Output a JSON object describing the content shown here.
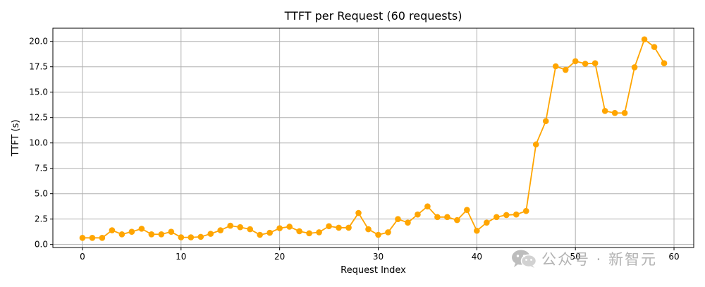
{
  "chart_data": {
    "type": "line",
    "title": "TTFT per Request (60 requests)",
    "xlabel": "Request Index",
    "ylabel": "TTFT (s)",
    "xlim": [
      -3,
      62
    ],
    "ylim": [
      -0.3,
      21.3
    ],
    "x_ticks": [
      0,
      10,
      20,
      30,
      40,
      50,
      60
    ],
    "y_ticks": [
      0.0,
      2.5,
      5.0,
      7.5,
      10.0,
      12.5,
      15.0,
      17.5,
      20.0
    ],
    "x_tick_labels": [
      "0",
      "10",
      "20",
      "30",
      "40",
      "50",
      "60"
    ],
    "y_tick_labels": [
      "0.0",
      "2.5",
      "5.0",
      "7.5",
      "10.0",
      "12.5",
      "15.0",
      "17.5",
      "20.0"
    ],
    "grid": true,
    "color": "#ffa500",
    "marker": "circle",
    "x": [
      0,
      1,
      2,
      3,
      4,
      5,
      6,
      7,
      8,
      9,
      10,
      11,
      12,
      13,
      14,
      15,
      16,
      17,
      18,
      19,
      20,
      21,
      22,
      23,
      24,
      25,
      26,
      27,
      28,
      29,
      30,
      31,
      32,
      33,
      34,
      35,
      36,
      37,
      38,
      39,
      40,
      41,
      42,
      43,
      44,
      45,
      46,
      47,
      48,
      49,
      50,
      51,
      52,
      53,
      54,
      55,
      56,
      57,
      58,
      59
    ],
    "y": [
      0.65,
      0.65,
      0.65,
      1.4,
      1.0,
      1.25,
      1.55,
      1.0,
      1.0,
      1.25,
      0.7,
      0.7,
      0.75,
      1.05,
      1.4,
      1.85,
      1.7,
      1.5,
      0.95,
      1.15,
      1.6,
      1.75,
      1.3,
      1.1,
      1.2,
      1.8,
      1.65,
      1.65,
      3.1,
      1.5,
      0.95,
      1.2,
      2.5,
      2.15,
      2.95,
      3.75,
      2.7,
      2.7,
      2.4,
      3.4,
      1.35,
      2.15,
      2.7,
      2.9,
      2.95,
      3.3,
      9.85,
      12.15,
      17.55,
      17.2,
      18.05,
      17.8,
      17.85,
      13.15,
      12.95,
      12.95,
      17.45,
      20.2,
      19.45,
      17.85
    ]
  },
  "watermark": {
    "text": "公众号 · 新智元",
    "icon": "wechat-icon"
  }
}
